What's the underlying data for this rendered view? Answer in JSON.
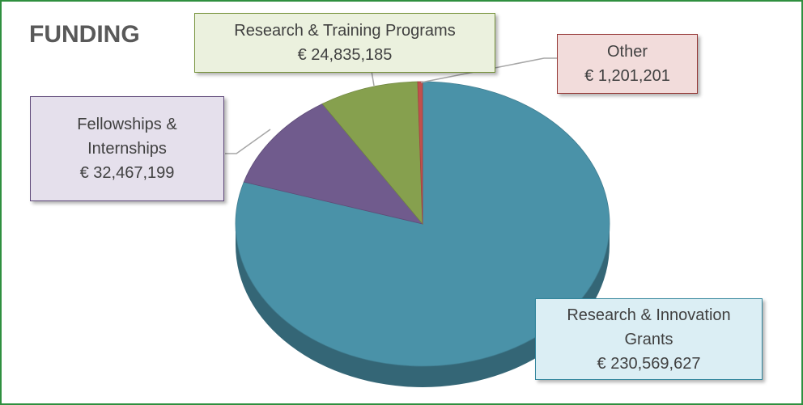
{
  "chart_data": {
    "type": "pie",
    "title": "FUNDING",
    "categories": [
      "Research & Innovation Grants",
      "Fellowships & Internships",
      "Research & Training Programs",
      "Other"
    ],
    "values": [
      230569627,
      32467199,
      24835185,
      1201201
    ],
    "value_labels": [
      "€ 230,569,627",
      "€ 32,467,199",
      "€ 24,835,185",
      "€ 1,201,201"
    ],
    "colors": [
      "#4a92a8",
      "#705b8d",
      "#86a04e",
      "#c0504d"
    ]
  }
}
